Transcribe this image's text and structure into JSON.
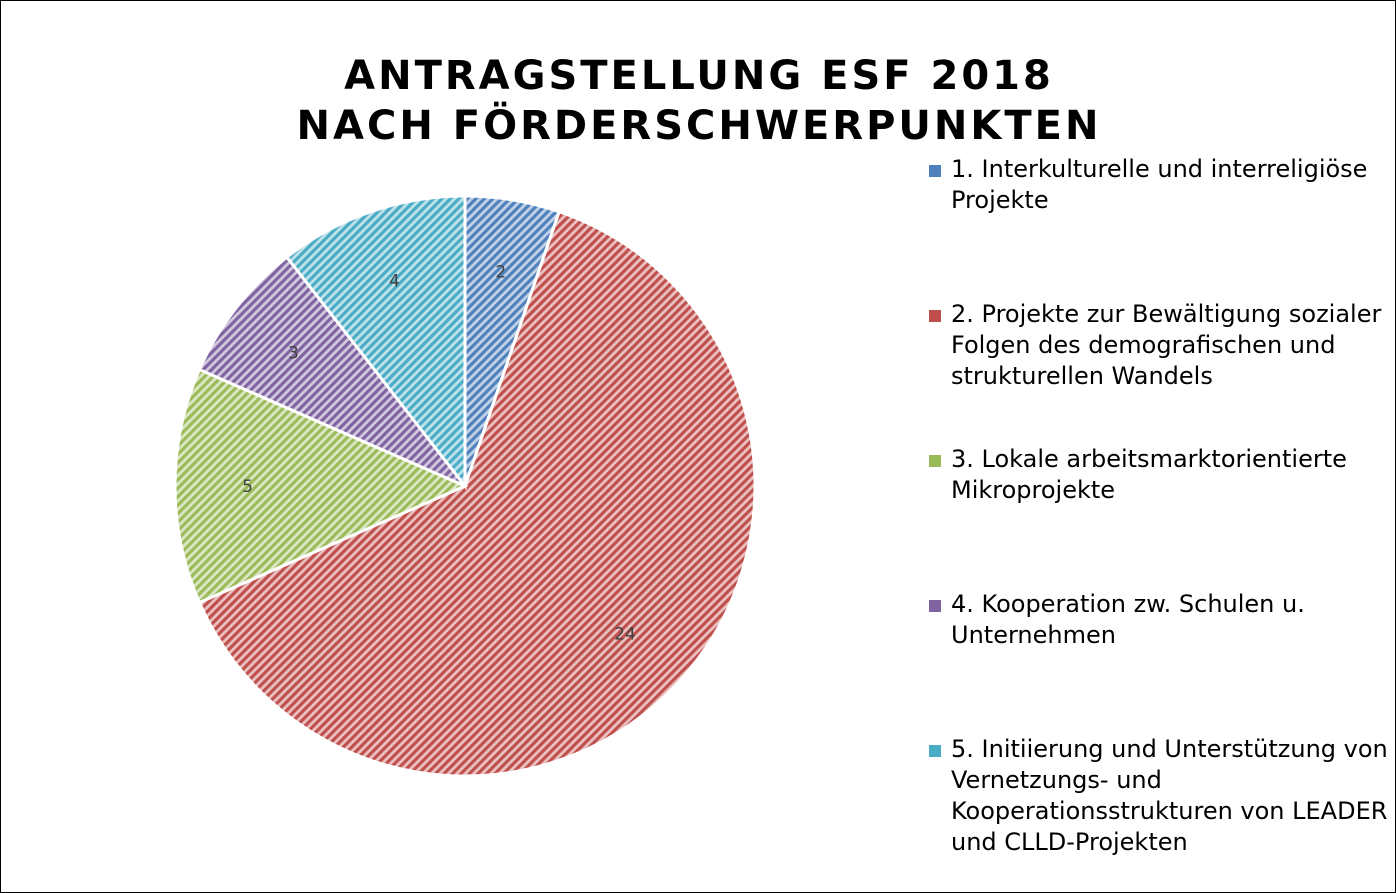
{
  "chart_data": {
    "type": "pie",
    "title": [
      "ANTRAGSTELLUNG ESF 2018",
      "NACH FÖRDERSCHWERPUNKTEN"
    ],
    "categories": [
      "1. Interkulturelle und interreligiöse Projekte",
      "2. Projekte zur Bewältigung sozialer Folgen des demografischen und strukturellen Wandels",
      "3. Lokale arbeitsmarktorientierte Mikroprojekte",
      "4. Kooperation zw. Schulen u. Unternehmen",
      "5. Initiierung und Unterstützung von Vernetzungs- und Kooperationsstrukturen von LEADER und CLLD-Projekten"
    ],
    "values": [
      2,
      24,
      5,
      3,
      4
    ],
    "colors": [
      "#4f81bd",
      "#c0504d",
      "#9bbb59",
      "#8064a2",
      "#4bacc6"
    ],
    "legend": "right"
  }
}
